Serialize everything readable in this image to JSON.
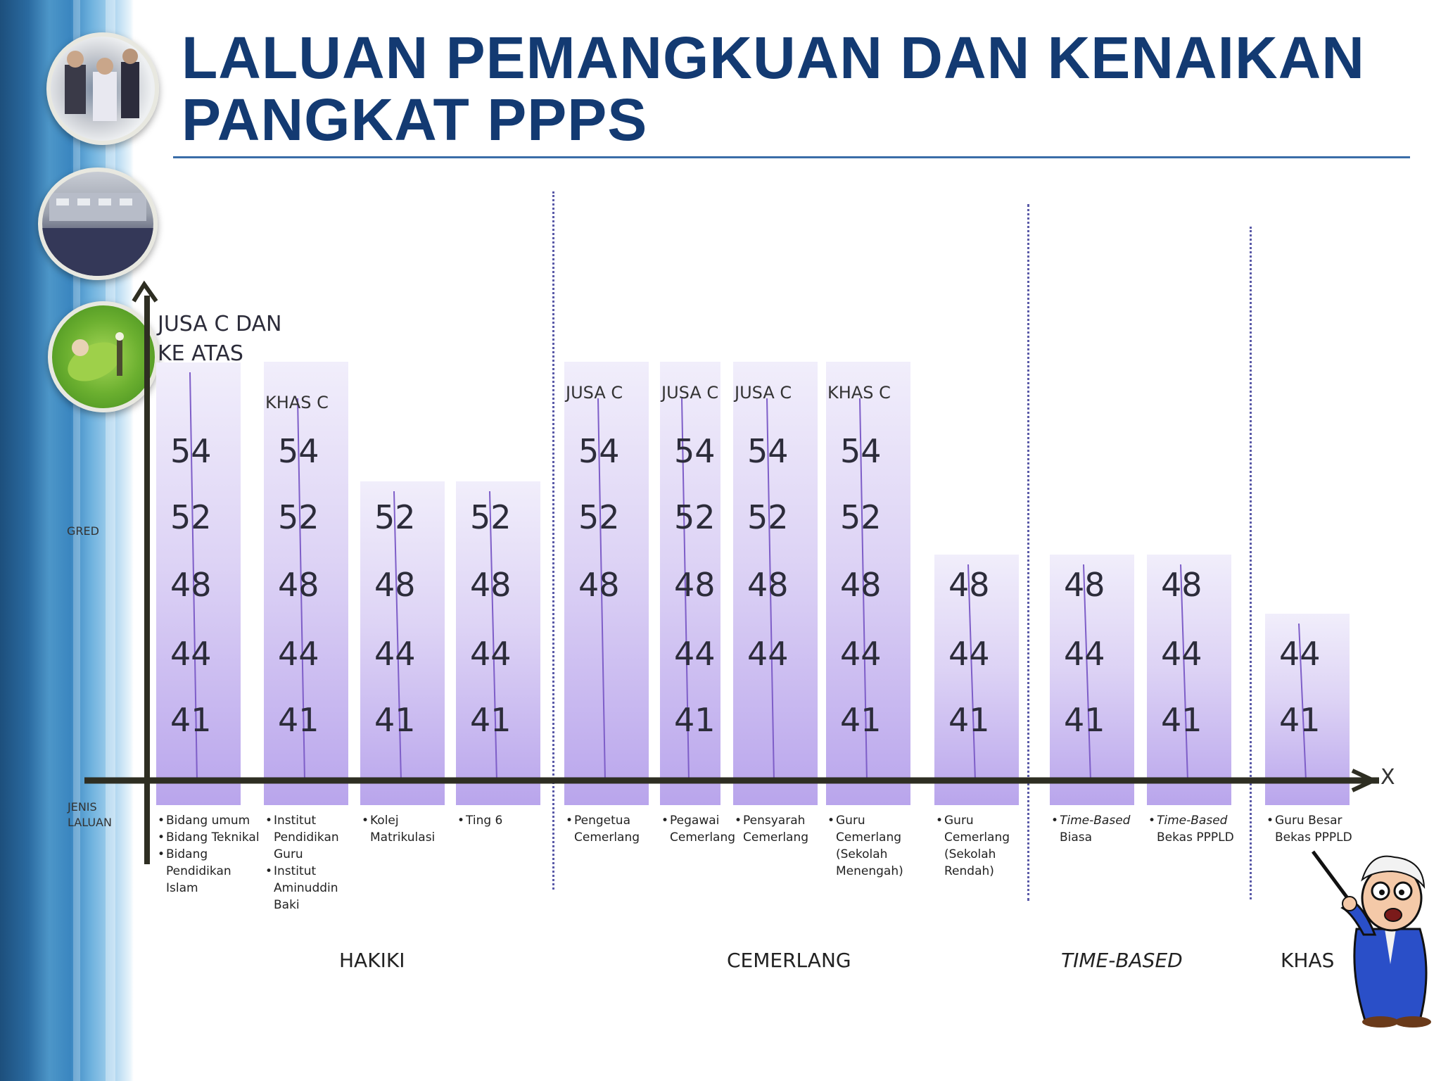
{
  "title": "LALUAN PEMANGKUAN DAN KENAIKAN PANGKAT PPPS",
  "y_axis_label": "GRED",
  "x_axis_label": "JENIS LALUAN",
  "x_axis_end": "X",
  "y_top_label": "JUSA  C DAN KE ATAS",
  "columns": [
    {
      "top": "",
      "grades": [
        "54",
        "52",
        "48",
        "44",
        "41"
      ],
      "desc": [
        [
          "Bidang  umum"
        ],
        [
          "Bidang Teknikal"
        ],
        [
          "Bidang",
          "Pendidikan",
          "Islam"
        ]
      ]
    },
    {
      "top": "KHAS C",
      "grades": [
        "54",
        "52",
        "48",
        "44",
        "41"
      ],
      "desc": [
        [
          "Institut",
          "Pendidikan",
          "Guru"
        ],
        [
          "Institut",
          "Aminuddin",
          "Baki"
        ]
      ]
    },
    {
      "top": "",
      "grades": [
        "52",
        "48",
        "44",
        "41"
      ],
      "desc": [
        [
          "Kolej",
          "Matrikulasi"
        ]
      ]
    },
    {
      "top": "",
      "grades": [
        "52",
        "48",
        "44",
        "41"
      ],
      "desc": [
        [
          "Ting 6"
        ]
      ]
    },
    {
      "top": "JUSA C",
      "grades": [
        "54",
        "52",
        "48"
      ],
      "desc": [
        [
          "Pengetua",
          "Cemerlang"
        ]
      ]
    },
    {
      "top": "JUSA C",
      "grades": [
        "54",
        "52",
        "48",
        "44",
        "41"
      ],
      "desc": [
        [
          "Pegawai",
          "Cemerlang"
        ]
      ]
    },
    {
      "top": "JUSA C",
      "grades": [
        "54",
        "52",
        "48",
        "44"
      ],
      "desc": [
        [
          "Pensyarah",
          "Cemerlang"
        ]
      ]
    },
    {
      "top": "KHAS C",
      "grades": [
        "54",
        "52",
        "48",
        "44",
        "41"
      ],
      "desc": [
        [
          "Guru",
          "Cemerlang",
          "(Sekolah",
          "Menengah)"
        ]
      ]
    },
    {
      "top": "",
      "grades": [
        "48",
        "44",
        "41"
      ],
      "desc": [
        [
          "Guru",
          "Cemerlang",
          "(Sekolah",
          "Rendah)"
        ]
      ]
    },
    {
      "top": "",
      "grades": [
        "48",
        "44",
        "41"
      ],
      "desc": [
        [
          "Time-Based",
          "Biasa"
        ]
      ],
      "italic_first": true
    },
    {
      "top": "",
      "grades": [
        "48",
        "44",
        "41"
      ],
      "desc": [
        [
          "Time-Based",
          "Bekas  PPPLD"
        ]
      ],
      "italic_first": true
    },
    {
      "top": "",
      "grades": [
        "44",
        "41"
      ],
      "desc": [
        [
          "Guru Besar",
          "Bekas PPPLD"
        ]
      ]
    }
  ],
  "groups": [
    "HAKIKI",
    "CEMERLANG",
    "TIME-BASED",
    "KHAS"
  ],
  "colors": {
    "title": "#133a72",
    "column_bottom": "#b9a5ec",
    "axis": "#2e2e22"
  }
}
